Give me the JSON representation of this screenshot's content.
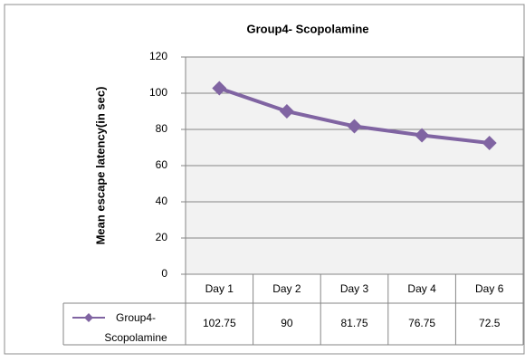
{
  "chart_data": {
    "type": "line",
    "title": "Group4- Scopolamine",
    "y_label": "Mean escape latency(in sec)",
    "categories": [
      "Day 1",
      "Day 2",
      "Day 3",
      "Day 4",
      "Day 6"
    ],
    "series": [
      {
        "name": "Group4- Scopolamine",
        "color": "#8064a2",
        "values": [
          102.75,
          90,
          81.75,
          76.75,
          72.5
        ]
      }
    ],
    "ylim": [
      0,
      120
    ],
    "yticks": [
      0,
      20,
      40,
      60,
      80,
      100,
      120
    ],
    "grid": true,
    "data_table": true
  }
}
